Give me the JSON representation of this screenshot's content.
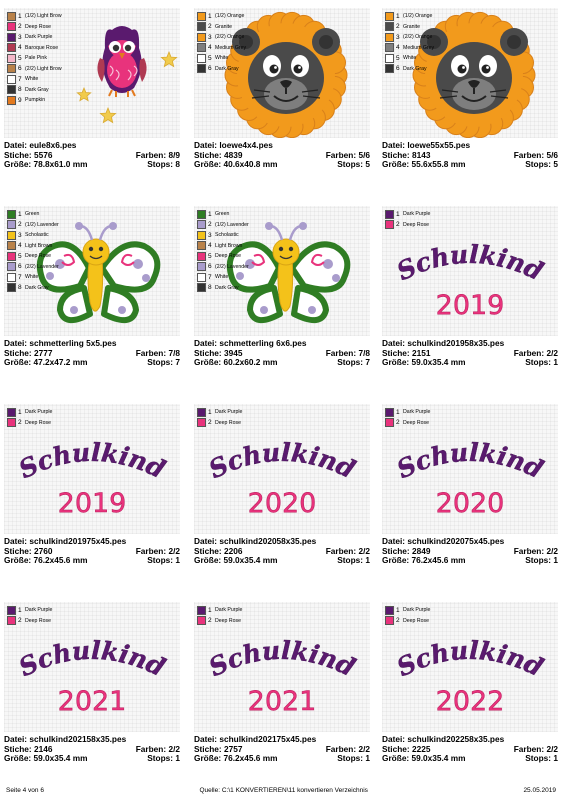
{
  "colors": {
    "dark_purple": "#5a1a6e",
    "deep_rose": "#e8337c",
    "orange": "#f29a1c",
    "granite": "#4a4a4a",
    "medium_grey": "#7e7e7e",
    "light_brown": "#b9824a",
    "pale_pink": "#f5b7c9",
    "pumpkin": "#e37a1f",
    "green": "#2f7d23",
    "lavender": "#a99ccc",
    "scholastic": "#f4c21a",
    "white": "#ffffff",
    "dark_gray": "#333333",
    "baroque_rose": "#b03a52"
  },
  "labels": {
    "file": "Datei:",
    "stitches": "Stiche:",
    "colors": "Farben:",
    "size": "Größe:",
    "stops": "Stops:"
  },
  "cards": [
    {
      "art": "owl",
      "file": "eule8x6.pes",
      "stitches": "5576",
      "colors": "8/9",
      "size": "78.8x61.0 mm",
      "stops": "8",
      "legend": [
        {
          "num": "1",
          "label": "(1/2) Light Brow",
          "color": "#b9824a"
        },
        {
          "num": "2",
          "label": "Deep Rose",
          "color": "#e8337c"
        },
        {
          "num": "3",
          "label": "Dark Purple",
          "color": "#5a1a6e"
        },
        {
          "num": "4",
          "label": "Baroque Rose",
          "color": "#b03a52"
        },
        {
          "num": "5",
          "label": "Pale Pink",
          "color": "#f5b7c9"
        },
        {
          "num": "6",
          "label": "(2/2) Light Brow",
          "color": "#b9824a"
        },
        {
          "num": "7",
          "label": "White",
          "color": "#ffffff"
        },
        {
          "num": "8",
          "label": "Dark Gray",
          "color": "#333333"
        },
        {
          "num": "9",
          "label": "Pumpkin",
          "color": "#e37a1f"
        }
      ]
    },
    {
      "art": "lion",
      "file": "loewe4x4.pes",
      "stitches": "4839",
      "colors": "5/6",
      "size": "40.6x40.8 mm",
      "stops": "5",
      "legend": [
        {
          "num": "1",
          "label": "(1/2) Orange",
          "color": "#f29a1c"
        },
        {
          "num": "2",
          "label": "Granite",
          "color": "#4a4a4a"
        },
        {
          "num": "3",
          "label": "(2/2) Orange",
          "color": "#f29a1c"
        },
        {
          "num": "4",
          "label": "Medium Grey",
          "color": "#7e7e7e"
        },
        {
          "num": "5",
          "label": "White",
          "color": "#ffffff"
        },
        {
          "num": "6",
          "label": "Dark Gray",
          "color": "#333333"
        }
      ]
    },
    {
      "art": "lion",
      "file": "loewe55x55.pes",
      "stitches": "8143",
      "colors": "5/6",
      "size": "55.6x55.8 mm",
      "stops": "5",
      "legend": [
        {
          "num": "1",
          "label": "(1/2) Orange",
          "color": "#f29a1c"
        },
        {
          "num": "2",
          "label": "Granite",
          "color": "#4a4a4a"
        },
        {
          "num": "3",
          "label": "(2/2) Orange",
          "color": "#f29a1c"
        },
        {
          "num": "4",
          "label": "Medium Grey",
          "color": "#7e7e7e"
        },
        {
          "num": "5",
          "label": "White",
          "color": "#ffffff"
        },
        {
          "num": "6",
          "label": "Dark Gray",
          "color": "#333333"
        }
      ]
    },
    {
      "art": "butterfly",
      "file": "schmetterling 5x5.pes",
      "stitches": "2777",
      "colors": "7/8",
      "size": "47.2x47.2 mm",
      "stops": "7",
      "legend": [
        {
          "num": "1",
          "label": "Green",
          "color": "#2f7d23"
        },
        {
          "num": "2",
          "label": "(1/2) Lavender",
          "color": "#a99ccc"
        },
        {
          "num": "3",
          "label": "Scholastic",
          "color": "#f4c21a"
        },
        {
          "num": "4",
          "label": "Light Brown",
          "color": "#b9824a"
        },
        {
          "num": "5",
          "label": "Deep Rose",
          "color": "#e8337c"
        },
        {
          "num": "6",
          "label": "(2/2) Lavender",
          "color": "#a99ccc"
        },
        {
          "num": "7",
          "label": "White",
          "color": "#ffffff"
        },
        {
          "num": "8",
          "label": "Dark Gray",
          "color": "#333333"
        }
      ]
    },
    {
      "art": "butterfly",
      "file": "schmetterling 6x6.pes",
      "stitches": "3945",
      "colors": "7/8",
      "size": "60.2x60.2 mm",
      "stops": "7",
      "legend": [
        {
          "num": "1",
          "label": "Green",
          "color": "#2f7d23"
        },
        {
          "num": "2",
          "label": "(1/2) Lavender",
          "color": "#a99ccc"
        },
        {
          "num": "3",
          "label": "Scholastic",
          "color": "#f4c21a"
        },
        {
          "num": "4",
          "label": "Light Brown",
          "color": "#b9824a"
        },
        {
          "num": "5",
          "label": "Deep Rose",
          "color": "#e8337c"
        },
        {
          "num": "6",
          "label": "(2/2) Lavender",
          "color": "#a99ccc"
        },
        {
          "num": "7",
          "label": "White",
          "color": "#ffffff"
        },
        {
          "num": "8",
          "label": "Dark Gray",
          "color": "#333333"
        }
      ]
    },
    {
      "art": "text",
      "word": "Schulkind",
      "year": "2019",
      "file": "schulkind201958x35.pes",
      "stitches": "2151",
      "colors": "2/2",
      "size": "59.0x35.4 mm",
      "stops": "1",
      "legend": [
        {
          "num": "1",
          "label": "Dark Purple",
          "color": "#5a1a6e"
        },
        {
          "num": "2",
          "label": "Deep Rose",
          "color": "#e8337c"
        }
      ]
    },
    {
      "art": "text",
      "word": "Schulkind",
      "year": "2019",
      "file": "schulkind201975x45.pes",
      "stitches": "2760",
      "colors": "2/2",
      "size": "76.2x45.6 mm",
      "stops": "1",
      "legend": [
        {
          "num": "1",
          "label": "Dark Purple",
          "color": "#5a1a6e"
        },
        {
          "num": "2",
          "label": "Deep Rose",
          "color": "#e8337c"
        }
      ]
    },
    {
      "art": "text",
      "word": "Schulkind",
      "year": "2020",
      "file": "schulkind202058x35.pes",
      "stitches": "2206",
      "colors": "2/2",
      "size": "59.0x35.4 mm",
      "stops": "1",
      "legend": [
        {
          "num": "1",
          "label": "Dark Purple",
          "color": "#5a1a6e"
        },
        {
          "num": "2",
          "label": "Deep Rose",
          "color": "#e8337c"
        }
      ]
    },
    {
      "art": "text",
      "word": "Schulkind",
      "year": "2020",
      "file": "schulkind202075x45.pes",
      "stitches": "2849",
      "colors": "2/2",
      "size": "76.2x45.6 mm",
      "stops": "1",
      "legend": [
        {
          "num": "1",
          "label": "Dark Purple",
          "color": "#5a1a6e"
        },
        {
          "num": "2",
          "label": "Deep Rose",
          "color": "#e8337c"
        }
      ]
    },
    {
      "art": "text",
      "word": "Schulkind",
      "year": "2021",
      "file": "schulkind202158x35.pes",
      "stitches": "2146",
      "colors": "2/2",
      "size": "59.0x35.4 mm",
      "stops": "1",
      "legend": [
        {
          "num": "1",
          "label": "Dark Purple",
          "color": "#5a1a6e"
        },
        {
          "num": "2",
          "label": "Deep Rose",
          "color": "#e8337c"
        }
      ]
    },
    {
      "art": "text",
      "word": "Schulkind",
      "year": "2021",
      "file": "schulkind202175x45.pes",
      "stitches": "2757",
      "colors": "2/2",
      "size": "76.2x45.6 mm",
      "stops": "1",
      "legend": [
        {
          "num": "1",
          "label": "Dark Purple",
          "color": "#5a1a6e"
        },
        {
          "num": "2",
          "label": "Deep Rose",
          "color": "#e8337c"
        }
      ]
    },
    {
      "art": "text",
      "word": "Schulkind",
      "year": "2022",
      "file": "schulkind202258x35.pes",
      "stitches": "2225",
      "colors": "2/2",
      "size": "59.0x35.4 mm",
      "stops": "1",
      "legend": [
        {
          "num": "1",
          "label": "Dark Purple",
          "color": "#5a1a6e"
        },
        {
          "num": "2",
          "label": "Deep Rose",
          "color": "#e8337c"
        }
      ]
    }
  ],
  "footer": {
    "page": "Seite 4 von 6",
    "source": "Quelle: C:\\1 KONVERTIEREN\\11 konvertieren Verzeichnis",
    "date": "25.05.2019"
  }
}
